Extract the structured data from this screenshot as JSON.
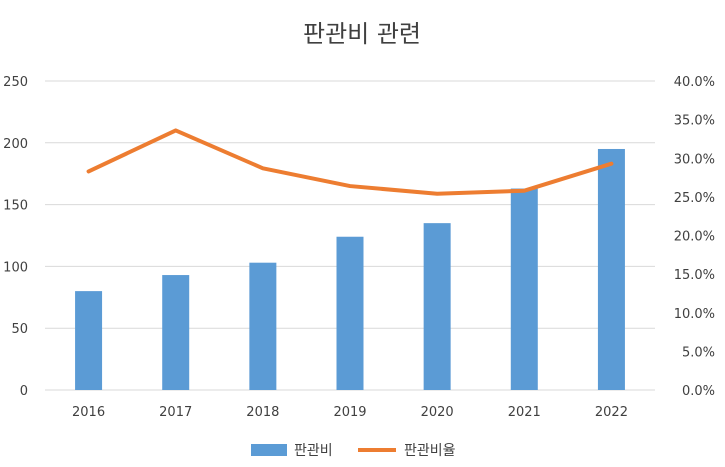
{
  "chart_data": {
    "type": "bar+line",
    "title": "판관비 관련",
    "categories": [
      "2016",
      "2017",
      "2018",
      "2019",
      "2020",
      "2021",
      "2022"
    ],
    "series": [
      {
        "name": "판관비",
        "type": "bar",
        "axis": "left",
        "color": "#5b9bd5",
        "values": [
          80,
          93,
          103,
          124,
          135,
          163,
          195
        ]
      },
      {
        "name": "판관비율",
        "type": "line",
        "axis": "right",
        "color": "#ed7d31",
        "values": [
          28.3,
          33.6,
          28.7,
          26.4,
          25.4,
          25.8,
          29.3
        ]
      }
    ],
    "y_left": {
      "min": 0,
      "max": 250,
      "ticks": [
        "0",
        "50",
        "100",
        "150",
        "200",
        "250"
      ]
    },
    "y_right": {
      "min": 0,
      "max": 40,
      "ticks": [
        "0.0%",
        "5.0%",
        "10.0%",
        "15.0%",
        "20.0%",
        "25.0%",
        "30.0%",
        "35.0%",
        "40.0%"
      ]
    },
    "grid": true,
    "legend_position": "bottom"
  }
}
